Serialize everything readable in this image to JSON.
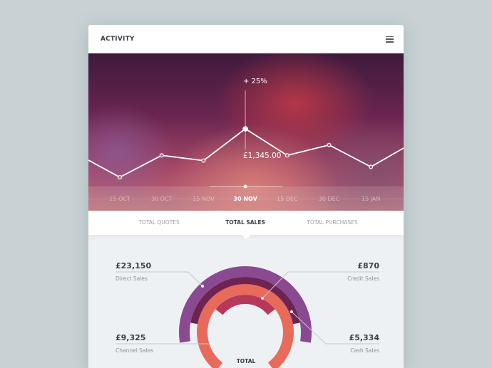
{
  "header": {
    "title": "ACTIVITY",
    "menu_icon": "hamburger-menu-icon"
  },
  "hero": {
    "change": "+ 25%",
    "value": "£1,345.00",
    "dates": [
      "15 OCT",
      "30 OCT",
      "15 NOV",
      "30 NOV",
      "15 DEC",
      "30 DEC",
      "15 JAN"
    ],
    "active_date": "30 NOV"
  },
  "chart_data": {
    "type": "line",
    "categories": [
      "15 OCT",
      "30 OCT",
      "15 NOV",
      "30 NOV",
      "15 DEC",
      "30 DEC",
      "15 JAN"
    ],
    "values": [
      880,
      1090,
      1040,
      1345,
      1090,
      1190,
      980
    ],
    "highlighted": {
      "category": "30 NOV",
      "label": "£1,345.00",
      "change": "+ 25%"
    }
  },
  "tabs": [
    {
      "label": "TOTAL QUOTES"
    },
    {
      "label": "TOTAL SALES",
      "active": true
    },
    {
      "label": "TOTAL PURCHASES"
    }
  ],
  "breakdown": {
    "direct": {
      "value": "£23,150",
      "label": "Direct Sales",
      "color": "#8a4a92"
    },
    "credit": {
      "value": "£870",
      "label": "Credit Sales",
      "color": "#b8385a"
    },
    "channel": {
      "value": "£9,325",
      "label": "Channel Sales",
      "color": "#e86a5a"
    },
    "cash": {
      "value": "£5,334",
      "label": "Cash Sales",
      "color": "#6e2452"
    },
    "total_label": "TOTAL"
  }
}
